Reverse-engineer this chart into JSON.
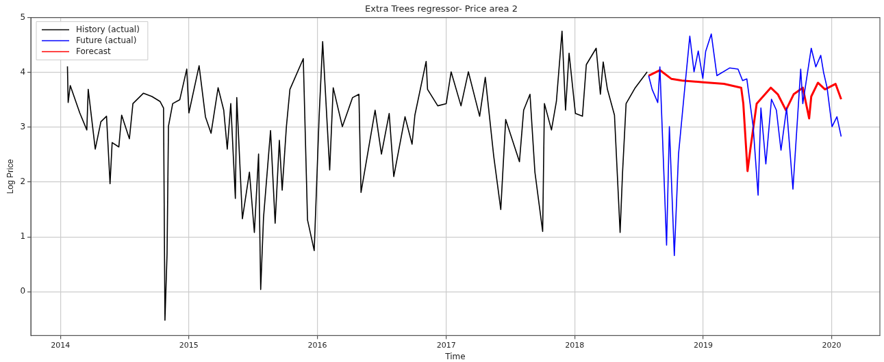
{
  "chart_data": {
    "type": "line",
    "title": "Extra Trees regressor- Price area 2",
    "xlabel": "Time",
    "ylabel": "Log Price",
    "xlim": [
      "2013-10-09",
      "2020-05-17"
    ],
    "ylim": [
      -0.8,
      5
    ],
    "xticks": [
      {
        "value": "2014-01-01",
        "label": "2014"
      },
      {
        "value": "2015-01-01",
        "label": "2015"
      },
      {
        "value": "2016-01-01",
        "label": "2016"
      },
      {
        "value": "2017-01-01",
        "label": "2017"
      },
      {
        "value": "2018-01-01",
        "label": "2018"
      },
      {
        "value": "2019-01-01",
        "label": "2019"
      },
      {
        "value": "2020-01-01",
        "label": "2020"
      }
    ],
    "yticks": [
      0,
      1,
      2,
      3,
      4,
      5
    ],
    "grid": true,
    "legend": "top left",
    "marker": "none",
    "line_style": "solid",
    "series": [
      {
        "name": "History (actual)",
        "color": "#000000",
        "x": [
          "2014-01-21",
          "2014-01-23",
          "2014-01-29",
          "2014-02-25",
          "2014-03-17",
          "2014-03-21",
          "2014-04-10",
          "2014-04-26",
          "2014-05-12",
          "2014-05-22",
          "2014-05-28",
          "2014-06-16",
          "2014-06-24",
          "2014-07-16",
          "2014-07-26",
          "2014-08-25",
          "2014-09-18",
          "2014-10-11",
          "2014-10-21",
          "2014-10-25",
          "2014-10-31",
          "2014-11-04",
          "2014-11-16",
          "2014-12-06",
          "2014-12-26",
          "2015-01-01",
          "2015-01-30",
          "2015-02-17",
          "2015-03-05",
          "2015-03-25",
          "2015-04-10",
          "2015-04-20",
          "2015-04-30",
          "2015-05-13",
          "2015-05-17",
          "2015-06-02",
          "2015-06-22",
          "2015-07-06",
          "2015-07-18",
          "2015-07-24",
          "2015-08-01",
          "2015-08-21",
          "2015-09-03",
          "2015-09-15",
          "2015-09-23",
          "2015-10-05",
          "2015-10-15",
          "2015-11-22",
          "2015-12-04",
          "2015-12-23",
          "2016-01-06",
          "2016-01-16",
          "2016-02-05",
          "2016-02-15",
          "2016-03-12",
          "2016-04-10",
          "2016-04-28",
          "2016-05-04",
          "2016-06-13",
          "2016-07-01",
          "2016-07-23",
          "2016-08-05",
          "2016-09-06",
          "2016-09-26",
          "2016-10-04",
          "2016-11-05",
          "2016-11-09",
          "2016-12-08",
          "2017-01-01",
          "2017-01-15",
          "2017-02-12",
          "2017-03-05",
          "2017-04-06",
          "2017-04-22",
          "2017-05-16",
          "2017-06-05",
          "2017-06-19",
          "2017-07-28",
          "2017-08-09",
          "2017-08-27",
          "2017-09-10",
          "2017-10-02",
          "2017-10-07",
          "2017-10-27",
          "2017-11-10",
          "2017-11-26",
          "2017-12-06",
          "2017-12-16",
          "2018-01-03",
          "2018-01-23",
          "2018-02-03",
          "2018-03-03",
          "2018-03-15",
          "2018-03-23",
          "2018-04-04",
          "2018-04-24",
          "2018-05-10",
          "2018-05-17",
          "2018-05-27",
          "2018-06-22",
          "2018-07-26"
        ],
        "values": [
          4.11,
          3.45,
          3.76,
          3.26,
          2.95,
          3.69,
          2.6,
          3.1,
          3.2,
          1.97,
          2.72,
          2.64,
          3.22,
          2.79,
          3.43,
          3.62,
          3.56,
          3.47,
          3.35,
          -0.52,
          0.69,
          3.02,
          3.43,
          3.5,
          4.06,
          3.26,
          4.12,
          3.19,
          2.89,
          3.72,
          3.31,
          2.6,
          3.43,
          1.7,
          3.54,
          1.33,
          2.18,
          1.08,
          2.51,
          0.04,
          1.35,
          2.94,
          1.25,
          2.76,
          1.85,
          3.01,
          3.69,
          4.25,
          1.31,
          0.75,
          3.2,
          4.56,
          2.22,
          3.72,
          3.01,
          3.54,
          3.6,
          1.81,
          3.31,
          2.51,
          3.25,
          2.1,
          3.19,
          2.69,
          3.22,
          4.2,
          3.69,
          3.39,
          3.43,
          4.01,
          3.39,
          4.01,
          3.2,
          3.91,
          2.47,
          1.5,
          3.14,
          2.37,
          3.31,
          3.6,
          2.18,
          1.1,
          3.43,
          2.95,
          3.47,
          4.75,
          3.31,
          4.35,
          3.25,
          3.2,
          4.14,
          4.44,
          3.6,
          4.19,
          3.69,
          3.22,
          1.08,
          2.18,
          3.43,
          3.72,
          4.01
        ]
      },
      {
        "name": "Future (actual)",
        "color": "#0000ff",
        "x": [
          "2018-07-30",
          "2018-08-09",
          "2018-08-25",
          "2018-08-31",
          "2018-09-19",
          "2018-09-27",
          "2018-10-11",
          "2018-10-23",
          "2018-11-08",
          "2018-11-24",
          "2018-12-06",
          "2018-12-18",
          "2018-12-31",
          "2019-01-08",
          "2019-01-24",
          "2019-02-09",
          "2019-03-17",
          "2019-04-10",
          "2019-04-23",
          "2019-05-05",
          "2019-05-23",
          "2019-06-06",
          "2019-06-14",
          "2019-06-28",
          "2019-07-14",
          "2019-07-28",
          "2019-08-10",
          "2019-08-26",
          "2019-09-13",
          "2019-10-05",
          "2019-10-11",
          "2019-11-04",
          "2019-11-17",
          "2019-12-01",
          "2019-12-09",
          "2019-12-19",
          "2020-01-02",
          "2020-01-16",
          "2020-01-28"
        ],
        "values": [
          3.94,
          3.69,
          3.45,
          4.1,
          0.85,
          3.01,
          0.66,
          2.51,
          3.6,
          4.66,
          4.01,
          4.39,
          3.89,
          4.38,
          4.7,
          3.94,
          4.08,
          4.06,
          3.85,
          3.88,
          3.01,
          1.76,
          3.35,
          2.33,
          3.51,
          3.31,
          2.58,
          3.35,
          1.87,
          4.06,
          3.43,
          4.44,
          4.1,
          4.31,
          4.0,
          3.72,
          3.01,
          3.19,
          2.83
        ]
      },
      {
        "name": "Forecast",
        "color": "#ff0000",
        "x": [
          "2018-07-30",
          "2018-08-31",
          "2018-10-03",
          "2018-11-02",
          "2019-01-01",
          "2019-03-01",
          "2019-04-19",
          "2019-04-25",
          "2019-05-07",
          "2019-05-15",
          "2019-06-02",
          "2019-07-12",
          "2019-08-01",
          "2019-08-24",
          "2019-09-15",
          "2019-10-11",
          "2019-10-29",
          "2019-11-04",
          "2019-11-23",
          "2019-12-13",
          "2020-01-12",
          "2020-01-28"
        ],
        "values": [
          3.94,
          4.04,
          3.88,
          3.85,
          3.82,
          3.79,
          3.72,
          3.43,
          2.2,
          2.6,
          3.43,
          3.72,
          3.6,
          3.31,
          3.6,
          3.72,
          3.16,
          3.56,
          3.81,
          3.69,
          3.79,
          3.51
        ]
      }
    ]
  }
}
